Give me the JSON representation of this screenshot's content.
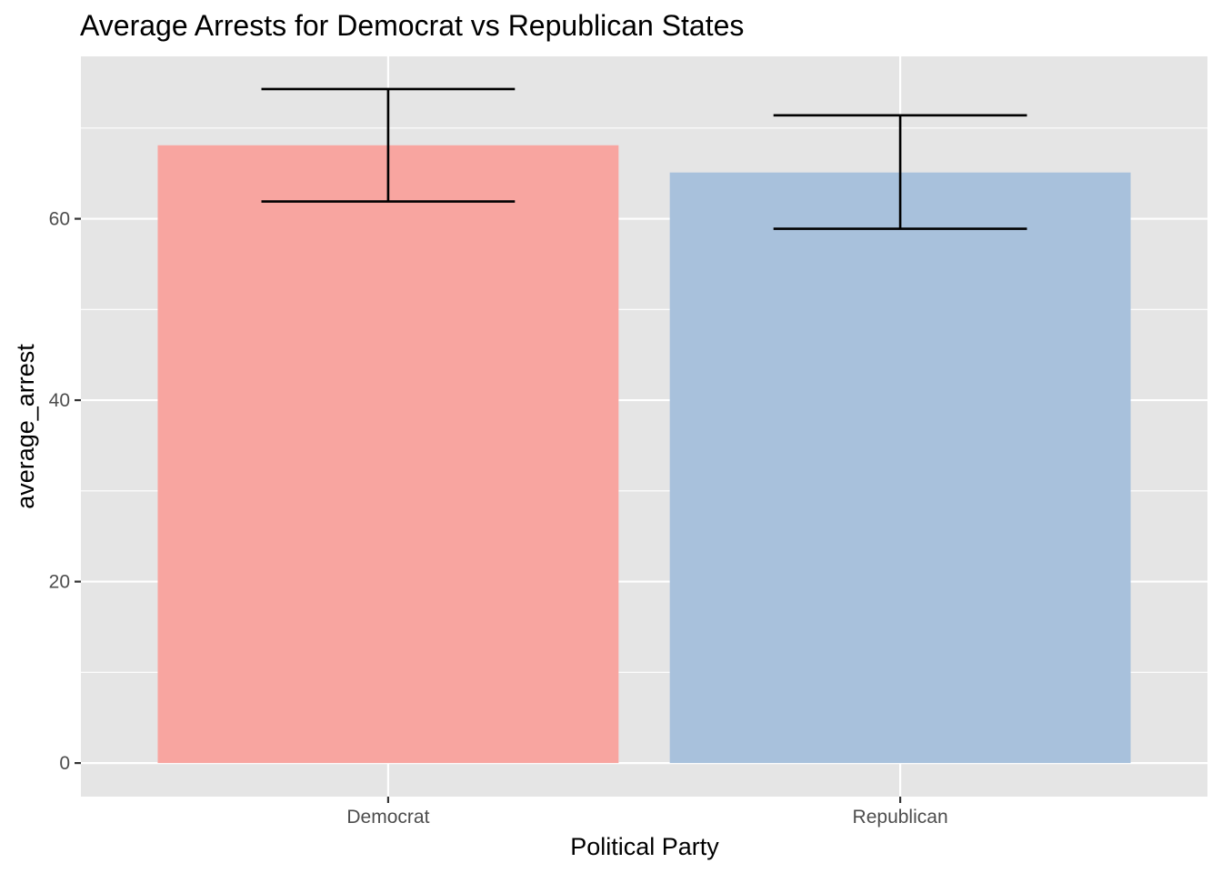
{
  "chart_data": {
    "type": "bar",
    "title": "Average Arrests for Democrat vs Republican States",
    "xlabel": "Political Party",
    "ylabel": "average_arrest",
    "categories": [
      "Democrat",
      "Republican"
    ],
    "values": [
      68.1,
      65.1
    ],
    "error_bars": [
      {
        "lower": 61.9,
        "upper": 74.3
      },
      {
        "lower": 58.9,
        "upper": 71.4
      }
    ],
    "bar_colors": [
      "#F8A5A0",
      "#A8C1DC"
    ],
    "ylim": [
      -3.7,
      77.9
    ],
    "y_ticks": [
      0,
      20,
      40,
      60
    ],
    "y_minor_ticks": [
      10,
      30,
      50,
      70
    ],
    "panel_background": "#E5E5E5",
    "grid_color": "#FFFFFF",
    "grid": true,
    "legend": "none"
  }
}
